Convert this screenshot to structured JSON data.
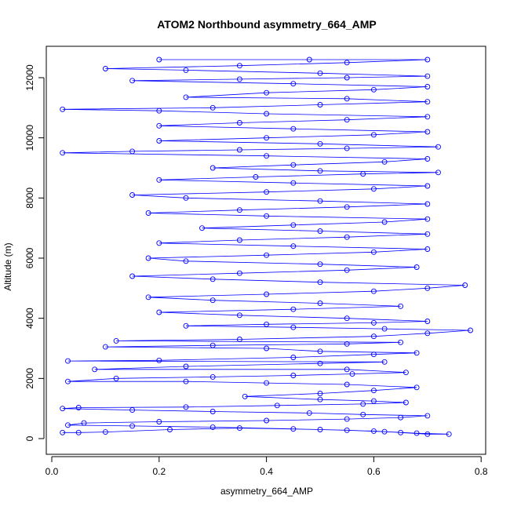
{
  "chart_data": {
    "type": "scatter",
    "title": "ATOM2 Northbound asymmetry_664_AMP",
    "xlabel": "asymmetry_664_AMP",
    "ylabel": "Altitude (m)",
    "xlim": [
      0.0,
      0.8
    ],
    "ylim": [
      0,
      12600
    ],
    "x_ticks": [
      0.0,
      0.2,
      0.4,
      0.6,
      0.8
    ],
    "x_tick_labels": [
      "0.0",
      "0.2",
      "0.4",
      "0.6",
      "0.8"
    ],
    "y_ticks": [
      0,
      2000,
      4000,
      6000,
      8000,
      10000,
      12000
    ],
    "y_tick_labels": [
      "0",
      "2000",
      "4000",
      "6000",
      "8000",
      "10000",
      "12000"
    ],
    "grid": false,
    "legend": "none",
    "series": [
      {
        "color": "#0000ff",
        "marker": "open-circle",
        "connected": true,
        "points": [
          [
            0.02,
            200
          ],
          [
            0.05,
            200
          ],
          [
            0.1,
            220
          ],
          [
            0.22,
            300
          ],
          [
            0.35,
            350
          ],
          [
            0.5,
            300
          ],
          [
            0.6,
            250
          ],
          [
            0.65,
            200
          ],
          [
            0.7,
            150
          ],
          [
            0.74,
            150
          ],
          [
            0.68,
            180
          ],
          [
            0.62,
            230
          ],
          [
            0.55,
            280
          ],
          [
            0.45,
            320
          ],
          [
            0.3,
            380
          ],
          [
            0.15,
            420
          ],
          [
            0.03,
            450
          ],
          [
            0.06,
            520
          ],
          [
            0.2,
            560
          ],
          [
            0.4,
            600
          ],
          [
            0.55,
            650
          ],
          [
            0.65,
            700
          ],
          [
            0.7,
            760
          ],
          [
            0.58,
            800
          ],
          [
            0.48,
            850
          ],
          [
            0.3,
            900
          ],
          [
            0.15,
            950
          ],
          [
            0.02,
            1000
          ],
          [
            0.05,
            1030
          ],
          [
            0.25,
            1050
          ],
          [
            0.42,
            1100
          ],
          [
            0.58,
            1150
          ],
          [
            0.66,
            1200
          ],
          [
            0.6,
            1250
          ],
          [
            0.5,
            1300
          ],
          [
            0.36,
            1400
          ],
          [
            0.5,
            1500
          ],
          [
            0.6,
            1600
          ],
          [
            0.68,
            1700
          ],
          [
            0.55,
            1800
          ],
          [
            0.4,
            1850
          ],
          [
            0.25,
            1900
          ],
          [
            0.03,
            1900
          ],
          [
            0.12,
            2000
          ],
          [
            0.3,
            2050
          ],
          [
            0.45,
            2100
          ],
          [
            0.56,
            2150
          ],
          [
            0.66,
            2200
          ],
          [
            0.55,
            2300
          ],
          [
            0.08,
            2300
          ],
          [
            0.25,
            2400
          ],
          [
            0.5,
            2500
          ],
          [
            0.62,
            2550
          ],
          [
            0.03,
            2580
          ],
          [
            0.2,
            2600
          ],
          [
            0.45,
            2700
          ],
          [
            0.6,
            2800
          ],
          [
            0.68,
            2850
          ],
          [
            0.5,
            2900
          ],
          [
            0.4,
            3000
          ],
          [
            0.1,
            3050
          ],
          [
            0.3,
            3100
          ],
          [
            0.55,
            3150
          ],
          [
            0.65,
            3200
          ],
          [
            0.12,
            3250
          ],
          [
            0.35,
            3300
          ],
          [
            0.6,
            3400
          ],
          [
            0.7,
            3500
          ],
          [
            0.78,
            3600
          ],
          [
            0.62,
            3650
          ],
          [
            0.45,
            3700
          ],
          [
            0.25,
            3750
          ],
          [
            0.4,
            3800
          ],
          [
            0.6,
            3850
          ],
          [
            0.7,
            3900
          ],
          [
            0.55,
            4000
          ],
          [
            0.35,
            4100
          ],
          [
            0.2,
            4200
          ],
          [
            0.45,
            4300
          ],
          [
            0.65,
            4400
          ],
          [
            0.5,
            4500
          ],
          [
            0.3,
            4600
          ],
          [
            0.18,
            4700
          ],
          [
            0.4,
            4800
          ],
          [
            0.6,
            4900
          ],
          [
            0.7,
            5000
          ],
          [
            0.77,
            5100
          ],
          [
            0.5,
            5200
          ],
          [
            0.3,
            5300
          ],
          [
            0.15,
            5400
          ],
          [
            0.35,
            5500
          ],
          [
            0.55,
            5600
          ],
          [
            0.68,
            5700
          ],
          [
            0.5,
            5800
          ],
          [
            0.25,
            5900
          ],
          [
            0.18,
            6000
          ],
          [
            0.4,
            6100
          ],
          [
            0.6,
            6200
          ],
          [
            0.7,
            6300
          ],
          [
            0.45,
            6400
          ],
          [
            0.2,
            6500
          ],
          [
            0.35,
            6600
          ],
          [
            0.55,
            6700
          ],
          [
            0.7,
            6800
          ],
          [
            0.5,
            6900
          ],
          [
            0.28,
            7000
          ],
          [
            0.45,
            7100
          ],
          [
            0.62,
            7200
          ],
          [
            0.7,
            7300
          ],
          [
            0.4,
            7400
          ],
          [
            0.18,
            7500
          ],
          [
            0.35,
            7600
          ],
          [
            0.55,
            7700
          ],
          [
            0.7,
            7800
          ],
          [
            0.5,
            7900
          ],
          [
            0.25,
            8000
          ],
          [
            0.15,
            8100
          ],
          [
            0.4,
            8200
          ],
          [
            0.6,
            8300
          ],
          [
            0.7,
            8400
          ],
          [
            0.45,
            8500
          ],
          [
            0.2,
            8600
          ],
          [
            0.38,
            8700
          ],
          [
            0.58,
            8800
          ],
          [
            0.72,
            8850
          ],
          [
            0.5,
            8900
          ],
          [
            0.3,
            9000
          ],
          [
            0.45,
            9100
          ],
          [
            0.62,
            9200
          ],
          [
            0.7,
            9300
          ],
          [
            0.4,
            9400
          ],
          [
            0.02,
            9500
          ],
          [
            0.15,
            9550
          ],
          [
            0.35,
            9600
          ],
          [
            0.55,
            9650
          ],
          [
            0.72,
            9700
          ],
          [
            0.5,
            9800
          ],
          [
            0.2,
            9900
          ],
          [
            0.4,
            10000
          ],
          [
            0.6,
            10100
          ],
          [
            0.7,
            10200
          ],
          [
            0.45,
            10300
          ],
          [
            0.2,
            10400
          ],
          [
            0.35,
            10500
          ],
          [
            0.55,
            10600
          ],
          [
            0.7,
            10700
          ],
          [
            0.4,
            10800
          ],
          [
            0.2,
            10900
          ],
          [
            0.02,
            10950
          ],
          [
            0.3,
            11000
          ],
          [
            0.5,
            11100
          ],
          [
            0.7,
            11200
          ],
          [
            0.55,
            11300
          ],
          [
            0.25,
            11350
          ],
          [
            0.4,
            11500
          ],
          [
            0.6,
            11600
          ],
          [
            0.7,
            11700
          ],
          [
            0.45,
            11800
          ],
          [
            0.15,
            11900
          ],
          [
            0.35,
            11950
          ],
          [
            0.55,
            12000
          ],
          [
            0.7,
            12050
          ],
          [
            0.5,
            12150
          ],
          [
            0.25,
            12250
          ],
          [
            0.1,
            12300
          ],
          [
            0.35,
            12400
          ],
          [
            0.55,
            12500
          ],
          [
            0.7,
            12600
          ],
          [
            0.48,
            12600
          ],
          [
            0.2,
            12600
          ]
        ]
      }
    ]
  }
}
